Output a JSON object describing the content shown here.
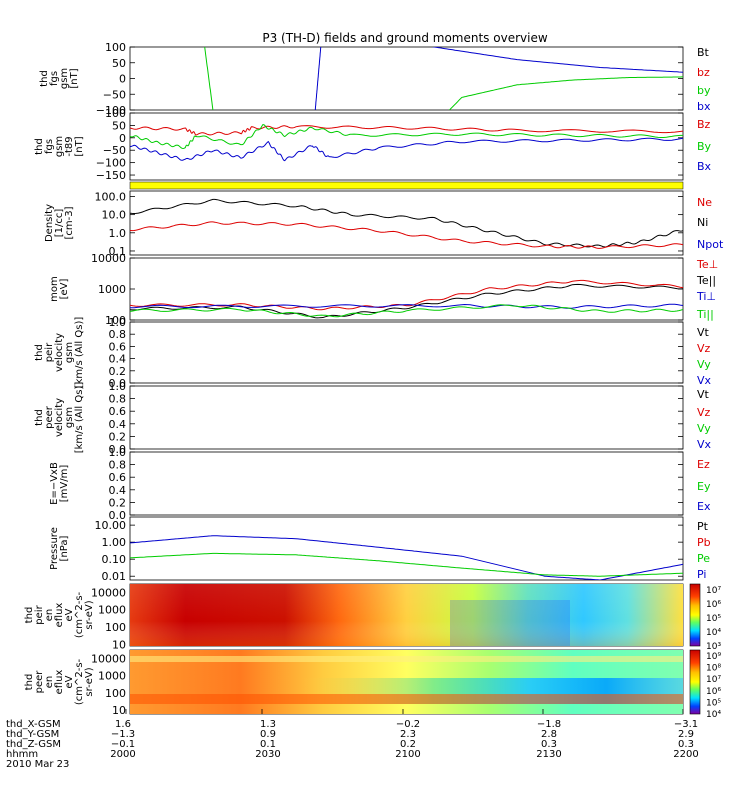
{
  "title": "P3 (TH-D) fields and ground moments overview",
  "colors": {
    "black": "#000000",
    "red": "#dd0000",
    "green": "#00cc00",
    "blue": "#0000cc",
    "yellow": "#ffff00"
  },
  "chart_data": [
    {
      "type": "line",
      "panel": "fgs",
      "ylabel_lines": [
        "thd",
        "fgs",
        "gsm",
        "[nT]"
      ],
      "ylim": [
        -100,
        100
      ],
      "ticks": [
        "100",
        "50",
        "0",
        "−50",
        "−100"
      ],
      "tick_values": [
        100,
        50,
        0,
        -50,
        -100
      ],
      "legend": [
        {
          "label": "Bt",
          "color": "#000000"
        },
        {
          "label": "bz",
          "color": "#dd0000"
        },
        {
          "label": "by",
          "color": "#00cc00"
        },
        {
          "label": "bx",
          "color": "#0000cc"
        }
      ],
      "series": [
        {
          "color": "#00cc00",
          "x": [
            0.1,
            0.135,
            0.15,
            0.19,
            0.55,
            0.6,
            0.7,
            0.8,
            0.9,
            1.0
          ],
          "y": [
            150,
            100,
            -100,
            -150,
            -150,
            -60,
            -20,
            -5,
            3,
            5
          ]
        },
        {
          "color": "#0000cc",
          "x": [
            0.3,
            0.335,
            0.345,
            0.38,
            0.45,
            0.55,
            0.7,
            0.85,
            1.0
          ],
          "y": [
            -150,
            -100,
            100,
            150,
            140,
            100,
            60,
            35,
            20
          ]
        }
      ]
    },
    {
      "type": "line",
      "panel": "fgs-t89",
      "ylabel_lines": [
        "thd",
        "fgs",
        "gsm",
        "-t89",
        "[nT]"
      ],
      "ylim": [
        -170,
        100
      ],
      "ticks": [
        "100",
        "50",
        "0",
        "−50",
        "−100",
        "−150"
      ],
      "tick_values": [
        100,
        50,
        0,
        -50,
        -100,
        -150
      ],
      "legend": [
        {
          "label": "Bz",
          "color": "#dd0000"
        },
        {
          "label": "By",
          "color": "#00cc00"
        },
        {
          "label": "Bx",
          "color": "#0000cc"
        }
      ],
      "series": [
        {
          "color": "#dd0000",
          "x": [
            0,
            0.1,
            0.12,
            0.2,
            0.22,
            0.3,
            0.5,
            0.7,
            1.0
          ],
          "y": [
            40,
            35,
            15,
            20,
            40,
            45,
            40,
            30,
            25
          ]
        },
        {
          "color": "#00cc00",
          "x": [
            0,
            0.05,
            0.1,
            0.12,
            0.2,
            0.24,
            0.28,
            0.33,
            0.4,
            0.6,
            0.8,
            1.0
          ],
          "y": [
            10,
            -20,
            -40,
            10,
            -30,
            50,
            10,
            40,
            10,
            15,
            10,
            5
          ]
        },
        {
          "color": "#0000cc",
          "x": [
            0,
            0.05,
            0.1,
            0.15,
            0.2,
            0.25,
            0.28,
            0.33,
            0.36,
            0.45,
            0.6,
            0.8,
            1.0
          ],
          "y": [
            -30,
            -60,
            -90,
            -50,
            -80,
            -20,
            -90,
            -30,
            -80,
            -40,
            -15,
            -10,
            -5
          ]
        }
      ]
    },
    {
      "type": "line",
      "panel": "density",
      "scale": "log",
      "ylabel_lines": [
        "Density",
        "[1/cc]",
        "[cm-3]"
      ],
      "ylim": [
        0.06,
        200
      ],
      "ticks": [
        "100.0",
        "10.0",
        "1.0",
        "0.1"
      ],
      "tick_values": [
        100,
        10,
        1,
        0.1
      ],
      "legend": [
        {
          "label": "Ne",
          "color": "#dd0000"
        },
        {
          "label": "Ni",
          "color": "#000000"
        },
        {
          "label": "Npot",
          "color": "#0000cc"
        }
      ],
      "series": [
        {
          "color": "#000000",
          "x": [
            0,
            0.15,
            0.3,
            0.4,
            0.55,
            0.65,
            0.75,
            0.85,
            0.92,
            1.0
          ],
          "y": [
            12,
            60,
            30,
            10,
            6,
            1.2,
            0.25,
            0.18,
            0.3,
            1.5
          ]
        },
        {
          "color": "#dd0000",
          "x": [
            0,
            0.15,
            0.3,
            0.45,
            0.6,
            0.75,
            0.85,
            1.0
          ],
          "y": [
            1.5,
            3.5,
            3,
            1.3,
            0.35,
            0.18,
            0.16,
            0.22
          ]
        }
      ]
    },
    {
      "type": "line",
      "panel": "mom-temp",
      "scale": "log",
      "ylabel_lines": [
        "mom",
        "[eV]"
      ],
      "ylim": [
        100,
        10000
      ],
      "ticks": [
        "10000",
        "1000",
        "100"
      ],
      "tick_values": [
        10000,
        1000,
        100
      ],
      "legend": [
        {
          "label": "Te⊥",
          "color": "#dd0000"
        },
        {
          "label": "Te||",
          "color": "#000000"
        },
        {
          "label": "Ti⊥",
          "color": "#0000cc"
        },
        {
          "label": "Ti||",
          "color": "#00cc00"
        }
      ],
      "series": [
        {
          "color": "#dd0000",
          "x": [
            0,
            0.2,
            0.35,
            0.5,
            0.65,
            0.8,
            1.0
          ],
          "y": [
            300,
            310,
            230,
            300,
            1000,
            1800,
            1200
          ]
        },
        {
          "color": "#000000",
          "x": [
            0,
            0.2,
            0.35,
            0.5,
            0.65,
            0.8,
            1.0
          ],
          "y": [
            230,
            260,
            120,
            250,
            700,
            1300,
            1100
          ]
        },
        {
          "color": "#0000cc",
          "x": [
            0,
            0.3,
            0.6,
            0.8,
            1.0
          ],
          "y": [
            270,
            280,
            290,
            260,
            300
          ]
        },
        {
          "color": "#00cc00",
          "x": [
            0,
            0.2,
            0.35,
            0.5,
            0.7,
            0.85,
            1.0
          ],
          "y": [
            200,
            220,
            130,
            200,
            300,
            190,
            210
          ]
        }
      ]
    },
    {
      "type": "line",
      "panel": "peir-velocity",
      "ylabel_lines": [
        "thd",
        "peir",
        "velocity",
        "gsm",
        "[km/s (All Qs)]"
      ],
      "ylim": [
        0,
        1
      ],
      "ticks": [
        "1.0",
        "0.8",
        "0.6",
        "0.4",
        "0.2",
        "0.0"
      ],
      "tick_values": [
        1,
        0.8,
        0.6,
        0.4,
        0.2,
        0
      ],
      "legend": [
        {
          "label": "Vt",
          "color": "#000000"
        },
        {
          "label": "Vz",
          "color": "#dd0000"
        },
        {
          "label": "Vy",
          "color": "#00cc00"
        },
        {
          "label": "Vx",
          "color": "#0000cc"
        }
      ],
      "series": []
    },
    {
      "type": "line",
      "panel": "peer-velocity",
      "ylabel_lines": [
        "thd",
        "peer",
        "velocity",
        "gsm",
        "[km/s (All Qs)]"
      ],
      "ylim": [
        0,
        1
      ],
      "ticks": [
        "1.0",
        "0.8",
        "0.6",
        "0.4",
        "0.2",
        "0.0"
      ],
      "tick_values": [
        1,
        0.8,
        0.6,
        0.4,
        0.2,
        0
      ],
      "legend": [
        {
          "label": "Vt",
          "color": "#000000"
        },
        {
          "label": "Vz",
          "color": "#dd0000"
        },
        {
          "label": "Vy",
          "color": "#00cc00"
        },
        {
          "label": "Vx",
          "color": "#0000cc"
        }
      ],
      "series": []
    },
    {
      "type": "line",
      "panel": "efield",
      "ylabel_lines": [
        "E=−VxB",
        "[mV/m]"
      ],
      "ylim": [
        0,
        1
      ],
      "ticks": [
        "1.0",
        "0.8",
        "0.6",
        "0.4",
        "0.2",
        "0.0"
      ],
      "tick_values": [
        1,
        0.8,
        0.6,
        0.4,
        0.2,
        0
      ],
      "legend": [
        {
          "label": "Ez",
          "color": "#dd0000"
        },
        {
          "label": "Ey",
          "color": "#00cc00"
        },
        {
          "label": "Ex",
          "color": "#0000cc"
        }
      ],
      "series": []
    },
    {
      "type": "line",
      "panel": "pressure",
      "scale": "log",
      "ylabel_lines": [
        "Pressure",
        "[nPa]"
      ],
      "ylim": [
        0.006,
        30
      ],
      "ticks": [
        "10.00",
        "1.00",
        "0.10",
        "0.01"
      ],
      "tick_values": [
        10,
        1,
        0.1,
        0.01
      ],
      "legend": [
        {
          "label": "Pt",
          "color": "#000000"
        },
        {
          "label": "Pb",
          "color": "#dd0000"
        },
        {
          "label": "Pe",
          "color": "#00cc00"
        },
        {
          "label": "Pi",
          "color": "#0000cc"
        }
      ],
      "series": [
        {
          "color": "#0000cc",
          "x": [
            0,
            0.15,
            0.3,
            0.45,
            0.6,
            0.75,
            0.85,
            1.0
          ],
          "y": [
            0.9,
            2.4,
            1.6,
            0.5,
            0.15,
            0.01,
            0.006,
            0.05
          ]
        },
        {
          "color": "#00cc00",
          "x": [
            0,
            0.15,
            0.3,
            0.45,
            0.6,
            0.75,
            0.85,
            1.0
          ],
          "y": [
            0.12,
            0.22,
            0.18,
            0.08,
            0.03,
            0.012,
            0.01,
            0.015
          ]
        }
      ]
    },
    {
      "type": "heatmap",
      "panel": "peir-spectrogram",
      "scale": "log",
      "ylabel_lines": [
        "thd",
        "peir",
        "en",
        "eflux",
        "eV",
        "(cm^2-s-",
        "sr-eV)"
      ],
      "ylim": [
        8,
        30000
      ],
      "ticks": [
        "10000",
        "1000",
        "100",
        "10"
      ],
      "tick_values": [
        10000,
        1000,
        100,
        10
      ],
      "colorbar_ticks": [
        "10⁷",
        "10⁶",
        "10⁵",
        "10⁴",
        "10³"
      ]
    },
    {
      "type": "heatmap",
      "panel": "peer-spectrogram",
      "scale": "log",
      "ylabel_lines": [
        "thd",
        "peer",
        "en",
        "eflux",
        "eV",
        "(cm^2-s-",
        "sr-eV)"
      ],
      "ylim": [
        6,
        30000
      ],
      "ticks": [
        "10000",
        "1000",
        "100",
        "10"
      ],
      "tick_values": [
        10000,
        1000,
        100,
        10
      ],
      "colorbar_ticks": [
        "10⁹",
        "10⁸",
        "10⁷",
        "10⁶",
        "10⁵",
        "10⁴"
      ]
    }
  ],
  "time_axis": {
    "row_labels": [
      "thd_X-GSM",
      "thd_Y-GSM",
      "thd_Z-GSM",
      "hhmm",
      "2010 Mar 23"
    ],
    "columns": [
      {
        "x": "1.6",
        "y": "−1.3",
        "z": "−0.1",
        "t": "2000"
      },
      {
        "x": "1.3",
        "y": "0.9",
        "z": "0.1",
        "t": "2030"
      },
      {
        "x": "−0.2",
        "y": "2.3",
        "z": "0.2",
        "t": "2100"
      },
      {
        "x": "−1.8",
        "y": "2.8",
        "z": "0.3",
        "t": "2130"
      },
      {
        "x": "−3.1",
        "y": "2.9",
        "z": "0.3",
        "t": "2200"
      }
    ]
  }
}
